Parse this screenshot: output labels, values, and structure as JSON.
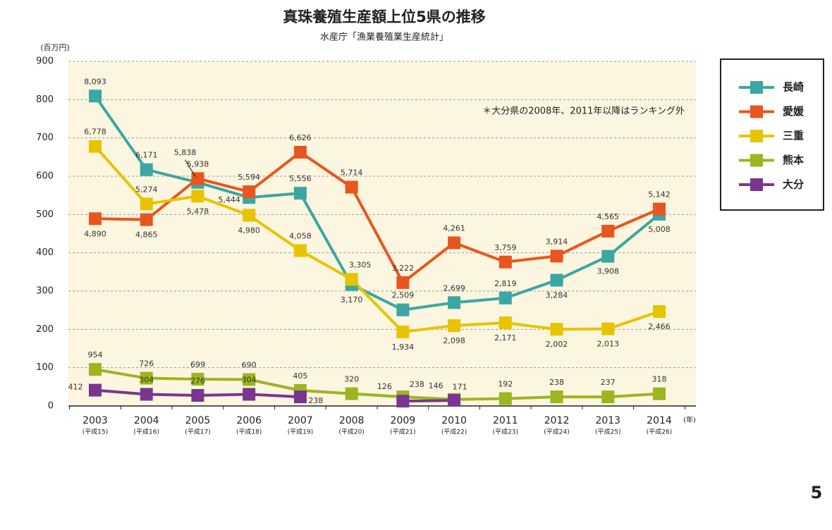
{
  "chart_data": {
    "type": "line",
    "title": "真珠養殖生産額上位5県の推移",
    "subtitle": "水産庁「漁業養殖業生産統計」",
    "y_unit": "(百万円)",
    "x_unit": "(年)",
    "note": "＊大分県の2008年、2011年以降はランキング外",
    "categories": [
      "2003",
      "2004",
      "2005",
      "2006",
      "2007",
      "2008",
      "2009",
      "2010",
      "2011",
      "2012",
      "2013",
      "2014"
    ],
    "era_labels": [
      "(平成15)",
      "(平成16)",
      "(平成17)",
      "(平成18)",
      "(平成19)",
      "(平成20)",
      "(平成21)",
      "(平成22)",
      "(平成23)",
      "(平成24)",
      "(平成25)",
      "(平成26)"
    ],
    "ylim": [
      0,
      900
    ],
    "yticks": [
      0,
      100,
      200,
      300,
      400,
      500,
      600,
      700,
      800,
      900
    ],
    "grid": true,
    "legend": "right",
    "series": [
      {
        "name": "長崎",
        "color": "#3aa7a3",
        "values": [
          809.3,
          617.1,
          583.8,
          544.4,
          555.6,
          317.0,
          250.9,
          269.9,
          281.9,
          328.4,
          390.8,
          500.8
        ],
        "value_labels": [
          "8,093",
          "6,171",
          "5,838",
          "5,444",
          "5,556",
          "3,170",
          "2,509",
          "2,699",
          "2,819",
          "3,284",
          "3,908",
          "5,008"
        ]
      },
      {
        "name": "愛媛",
        "color": "#e8561f",
        "values": [
          489.0,
          486.5,
          593.8,
          559.4,
          662.6,
          571.4,
          322.2,
          426.1,
          375.9,
          391.4,
          456.5,
          514.2
        ],
        "value_labels": [
          "4,890",
          "4,865",
          "5,938",
          "5,594",
          "6,626",
          "5,714",
          "3,222",
          "4,261",
          "3,759",
          "3,914",
          "4,565",
          "5,142"
        ]
      },
      {
        "name": "三重",
        "color": "#e6c400",
        "values": [
          677.8,
          527.4,
          547.8,
          498.0,
          405.8,
          330.5,
          193.4,
          209.8,
          217.1,
          200.2,
          201.3,
          246.6
        ],
        "value_labels": [
          "6,778",
          "5,274",
          "5,478",
          "4,980",
          "4,058",
          "3,305",
          "1,934",
          "2,098",
          "2,171",
          "2,002",
          "2,013",
          "2,466"
        ]
      },
      {
        "name": "熊本",
        "color": "#9cb520",
        "values": [
          95.4,
          72.6,
          69.9,
          69.0,
          40.5,
          32.0,
          23.8,
          17.1,
          19.2,
          23.8,
          23.7,
          31.8
        ],
        "value_labels": [
          "954",
          "726",
          "699",
          "690",
          "405",
          "320",
          "238",
          "171",
          "192",
          "238",
          "237",
          "318"
        ]
      },
      {
        "name": "大分",
        "color": "#7a3590",
        "values": [
          41.2,
          30.4,
          27.6,
          30.4,
          23.8,
          null,
          12.6,
          14.6,
          null,
          null,
          null,
          null
        ],
        "value_labels": [
          "412",
          "304",
          "276",
          "304",
          "238",
          null,
          "126",
          "146",
          null,
          null,
          null,
          null
        ]
      }
    ]
  },
  "page_number": "5"
}
